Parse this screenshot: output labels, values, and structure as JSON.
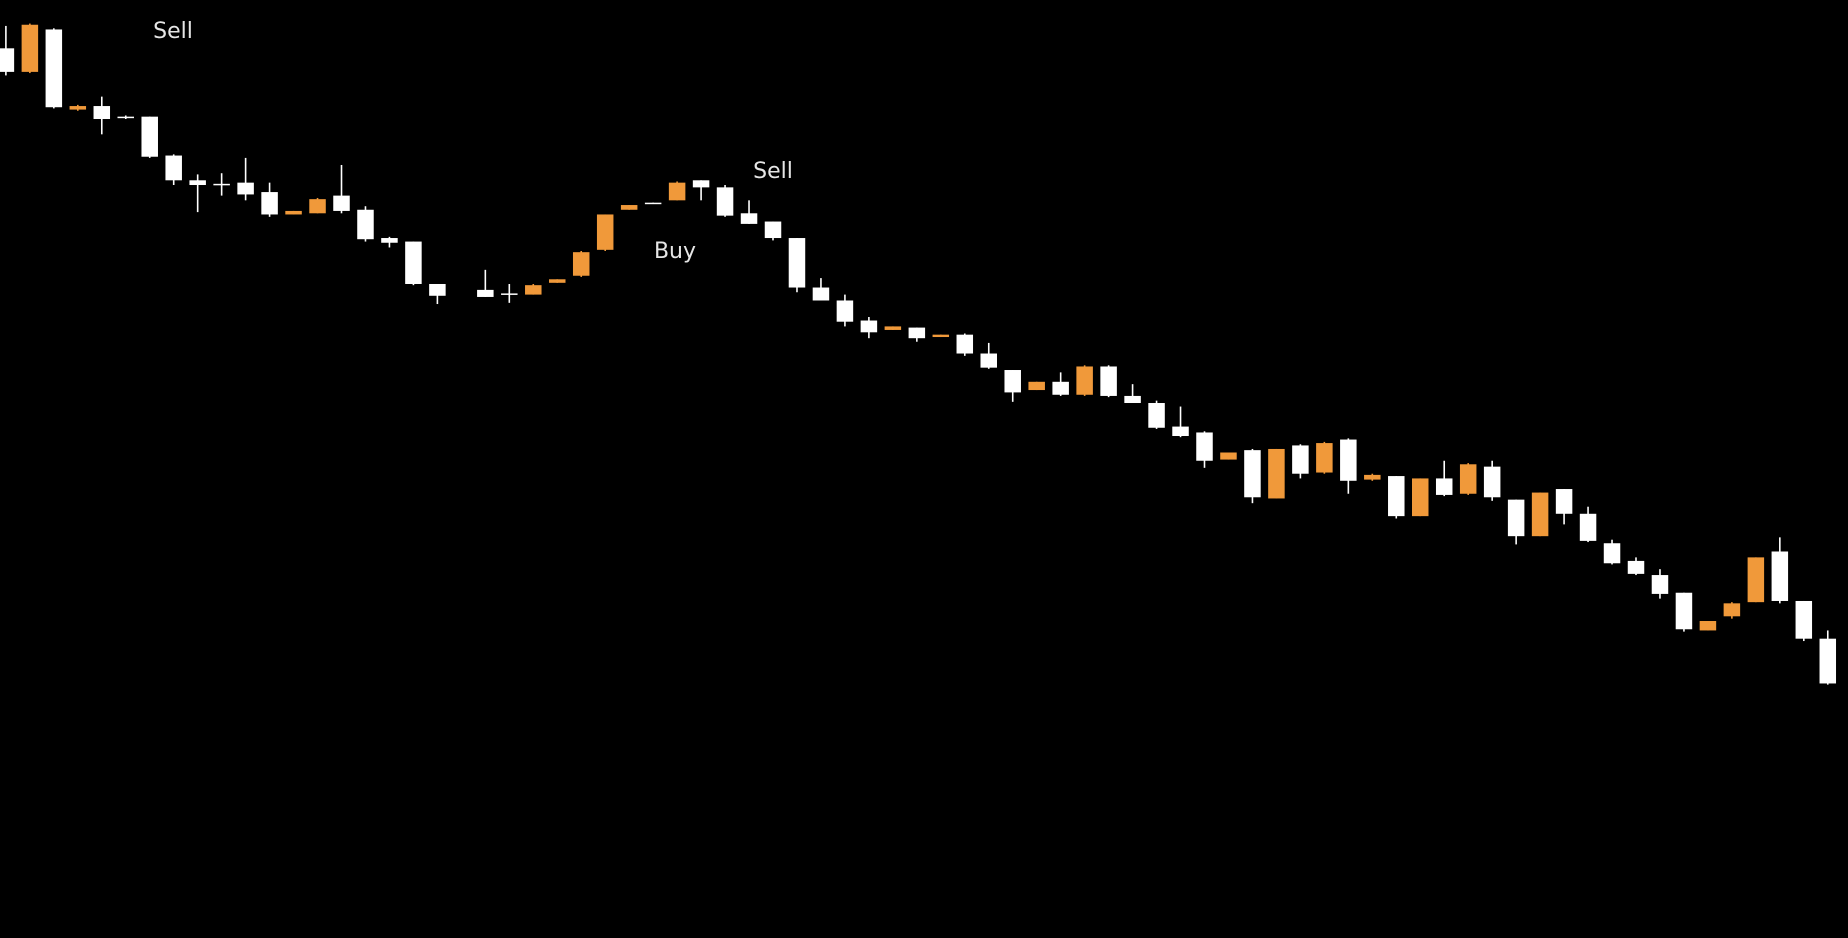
{
  "chart_data": {
    "type": "candlestick",
    "up_color": "#f0993a",
    "down_color": "#ffffff",
    "ylim": [
      4,
      800
    ],
    "annotations": [
      "Sell",
      "Sell",
      "Buy"
    ],
    "open": [
      759,
      739,
      775,
      707,
      710,
      701,
      701,
      668,
      647,
      644,
      645,
      637,
      618,
      619,
      634,
      622,
      598,
      595,
      559,
      null,
      554,
      551,
      550,
      560,
      566,
      588,
      622,
      628,
      630,
      647,
      641,
      619,
      612,
      598,
      556,
      545,
      528,
      520,
      522,
      514,
      516,
      500,
      486,
      469,
      476,
      465,
      489,
      464,
      458,
      438,
      433,
      410,
      418,
      377,
      422,
      399,
      427,
      393,
      396,
      362,
      394,
      381,
      404,
      376,
      345,
      385,
      364,
      339,
      324,
      312,
      297,
      265,
      277,
      289,
      332,
      290,
      258
    ],
    "high": [
      778,
      780,
      776,
      711,
      718,
      702,
      701,
      669,
      652,
      653,
      666,
      645,
      621,
      632,
      660,
      625,
      599,
      595,
      559,
      null,
      571,
      559,
      559,
      563,
      587,
      618,
      626,
      628,
      646,
      647,
      643,
      630,
      612,
      598,
      564,
      550,
      531,
      523,
      522,
      516,
      517,
      509,
      486,
      476,
      484,
      490,
      490,
      474,
      460,
      455,
      434,
      416,
      419,
      419,
      423,
      425,
      428,
      398,
      396,
      394,
      409,
      407,
      409,
      376,
      382,
      385,
      370,
      342,
      327,
      317,
      297,
      273,
      289,
      327,
      344,
      290,
      265
    ],
    "low": [
      736,
      738,
      708,
      706,
      686,
      699,
      666,
      643,
      620,
      634,
      630,
      616,
      618,
      619,
      619,
      595,
      590,
      558,
      542,
      null,
      548,
      543,
      550,
      560,
      565,
      587,
      622,
      627,
      630,
      630,
      616,
      610,
      596,
      552,
      545,
      523,
      513,
      520,
      510,
      514,
      498,
      487,
      459,
      469,
      464,
      464,
      463,
      458,
      436,
      429,
      403,
      410,
      373,
      377,
      394,
      398,
      381,
      392,
      360,
      362,
      379,
      380,
      375,
      338,
      345,
      355,
      340,
      321,
      312,
      292,
      264,
      265,
      275,
      289,
      288,
      256,
      219
    ],
    "close": [
      739,
      779,
      709,
      710,
      699,
      700,
      667,
      647,
      643,
      643,
      635,
      618,
      621,
      631,
      621,
      597,
      594,
      559,
      549,
      null,
      548,
      550,
      558,
      563,
      586,
      618,
      626,
      627,
      645,
      641,
      617,
      610,
      598,
      556,
      545,
      527,
      518,
      523,
      513,
      516,
      500,
      488,
      467,
      476,
      465,
      489,
      464,
      458,
      437,
      430,
      409,
      416,
      378,
      419,
      398,
      424,
      392,
      397,
      362,
      394,
      380,
      406,
      378,
      345,
      382,
      364,
      341,
      322,
      313,
      296,
      266,
      273,
      288,
      327,
      290,
      258,
      220
    ]
  }
}
